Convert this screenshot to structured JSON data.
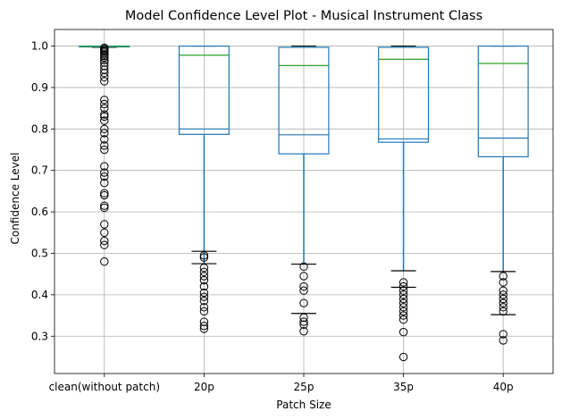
{
  "chart_data": {
    "type": "boxplot",
    "title": "Model Confidence Level Plot - Musical Instrument Class",
    "xlabel": "Patch Size",
    "ylabel": "Confidence Level",
    "ylim": [
      0.21,
      1.04
    ],
    "yticks": [
      0.3,
      0.4,
      0.5,
      0.6,
      0.7,
      0.8,
      0.9,
      1.0
    ],
    "grid": true,
    "categories": [
      "clean(without patch)",
      "20p",
      "25p",
      "35p",
      "40p"
    ],
    "boxes": [
      {
        "category": "clean(without patch)",
        "whisker_low": 0.997,
        "q1": 0.998,
        "median": 0.999,
        "q3": 1.0,
        "whisker_high": 1.0,
        "mean": 0.999,
        "outliers": [
          0.996,
          0.993,
          0.99,
          0.987,
          0.984,
          0.98,
          0.976,
          0.972,
          0.966,
          0.96,
          0.952,
          0.943,
          0.935,
          0.925,
          0.915,
          0.87,
          0.86,
          0.85,
          0.835,
          0.83,
          0.82,
          0.8,
          0.79,
          0.775,
          0.76,
          0.75,
          0.71,
          0.695,
          0.685,
          0.67,
          0.645,
          0.64,
          0.615,
          0.61,
          0.57,
          0.55,
          0.53,
          0.52,
          0.48
        ]
      },
      {
        "category": "20p",
        "whisker_low": 0.475,
        "q1": 0.787,
        "median": 0.8,
        "q3": 1.0,
        "whisker_high": 1.0,
        "mean": 0.978,
        "outliers": [
          0.495,
          0.49,
          0.465,
          0.455,
          0.445,
          0.435,
          0.42,
          0.405,
          0.395,
          0.385,
          0.37,
          0.36,
          0.335,
          0.325,
          0.318
        ],
        "extra_caps": [
          0.505
        ]
      },
      {
        "category": "25p",
        "whisker_low": 0.474,
        "q1": 0.74,
        "median": 0.786,
        "q3": 0.997,
        "whisker_high": 1.0,
        "mean": 0.953,
        "outliers": [
          0.468,
          0.445,
          0.42,
          0.41,
          0.38,
          0.345,
          0.335,
          0.328,
          0.312
        ],
        "extra_caps": [
          0.355
        ]
      },
      {
        "category": "35p",
        "whisker_low": 0.458,
        "q1": 0.768,
        "median": 0.776,
        "q3": 0.997,
        "whisker_high": 1.0,
        "mean": 0.968,
        "outliers": [
          0.43,
          0.42,
          0.41,
          0.4,
          0.39,
          0.38,
          0.37,
          0.36,
          0.35,
          0.34,
          0.31,
          0.25
        ],
        "extra_caps": [
          0.418
        ]
      },
      {
        "category": "40p",
        "whisker_low": 0.456,
        "q1": 0.733,
        "median": 0.778,
        "q3": 1.0,
        "whisker_high": 1.0,
        "mean": 0.958,
        "outliers": [
          0.445,
          0.43,
          0.41,
          0.4,
          0.39,
          0.38,
          0.37,
          0.36,
          0.305,
          0.29
        ],
        "extra_caps": [
          0.352
        ]
      }
    ],
    "colors": {
      "box": "#1f77b4",
      "median": "#1f77b4",
      "mean": "#2ca02c",
      "whisker": "#1f77b4",
      "cap": "#000000",
      "outlier": "#000000",
      "grid": "#b0b0b0"
    }
  }
}
